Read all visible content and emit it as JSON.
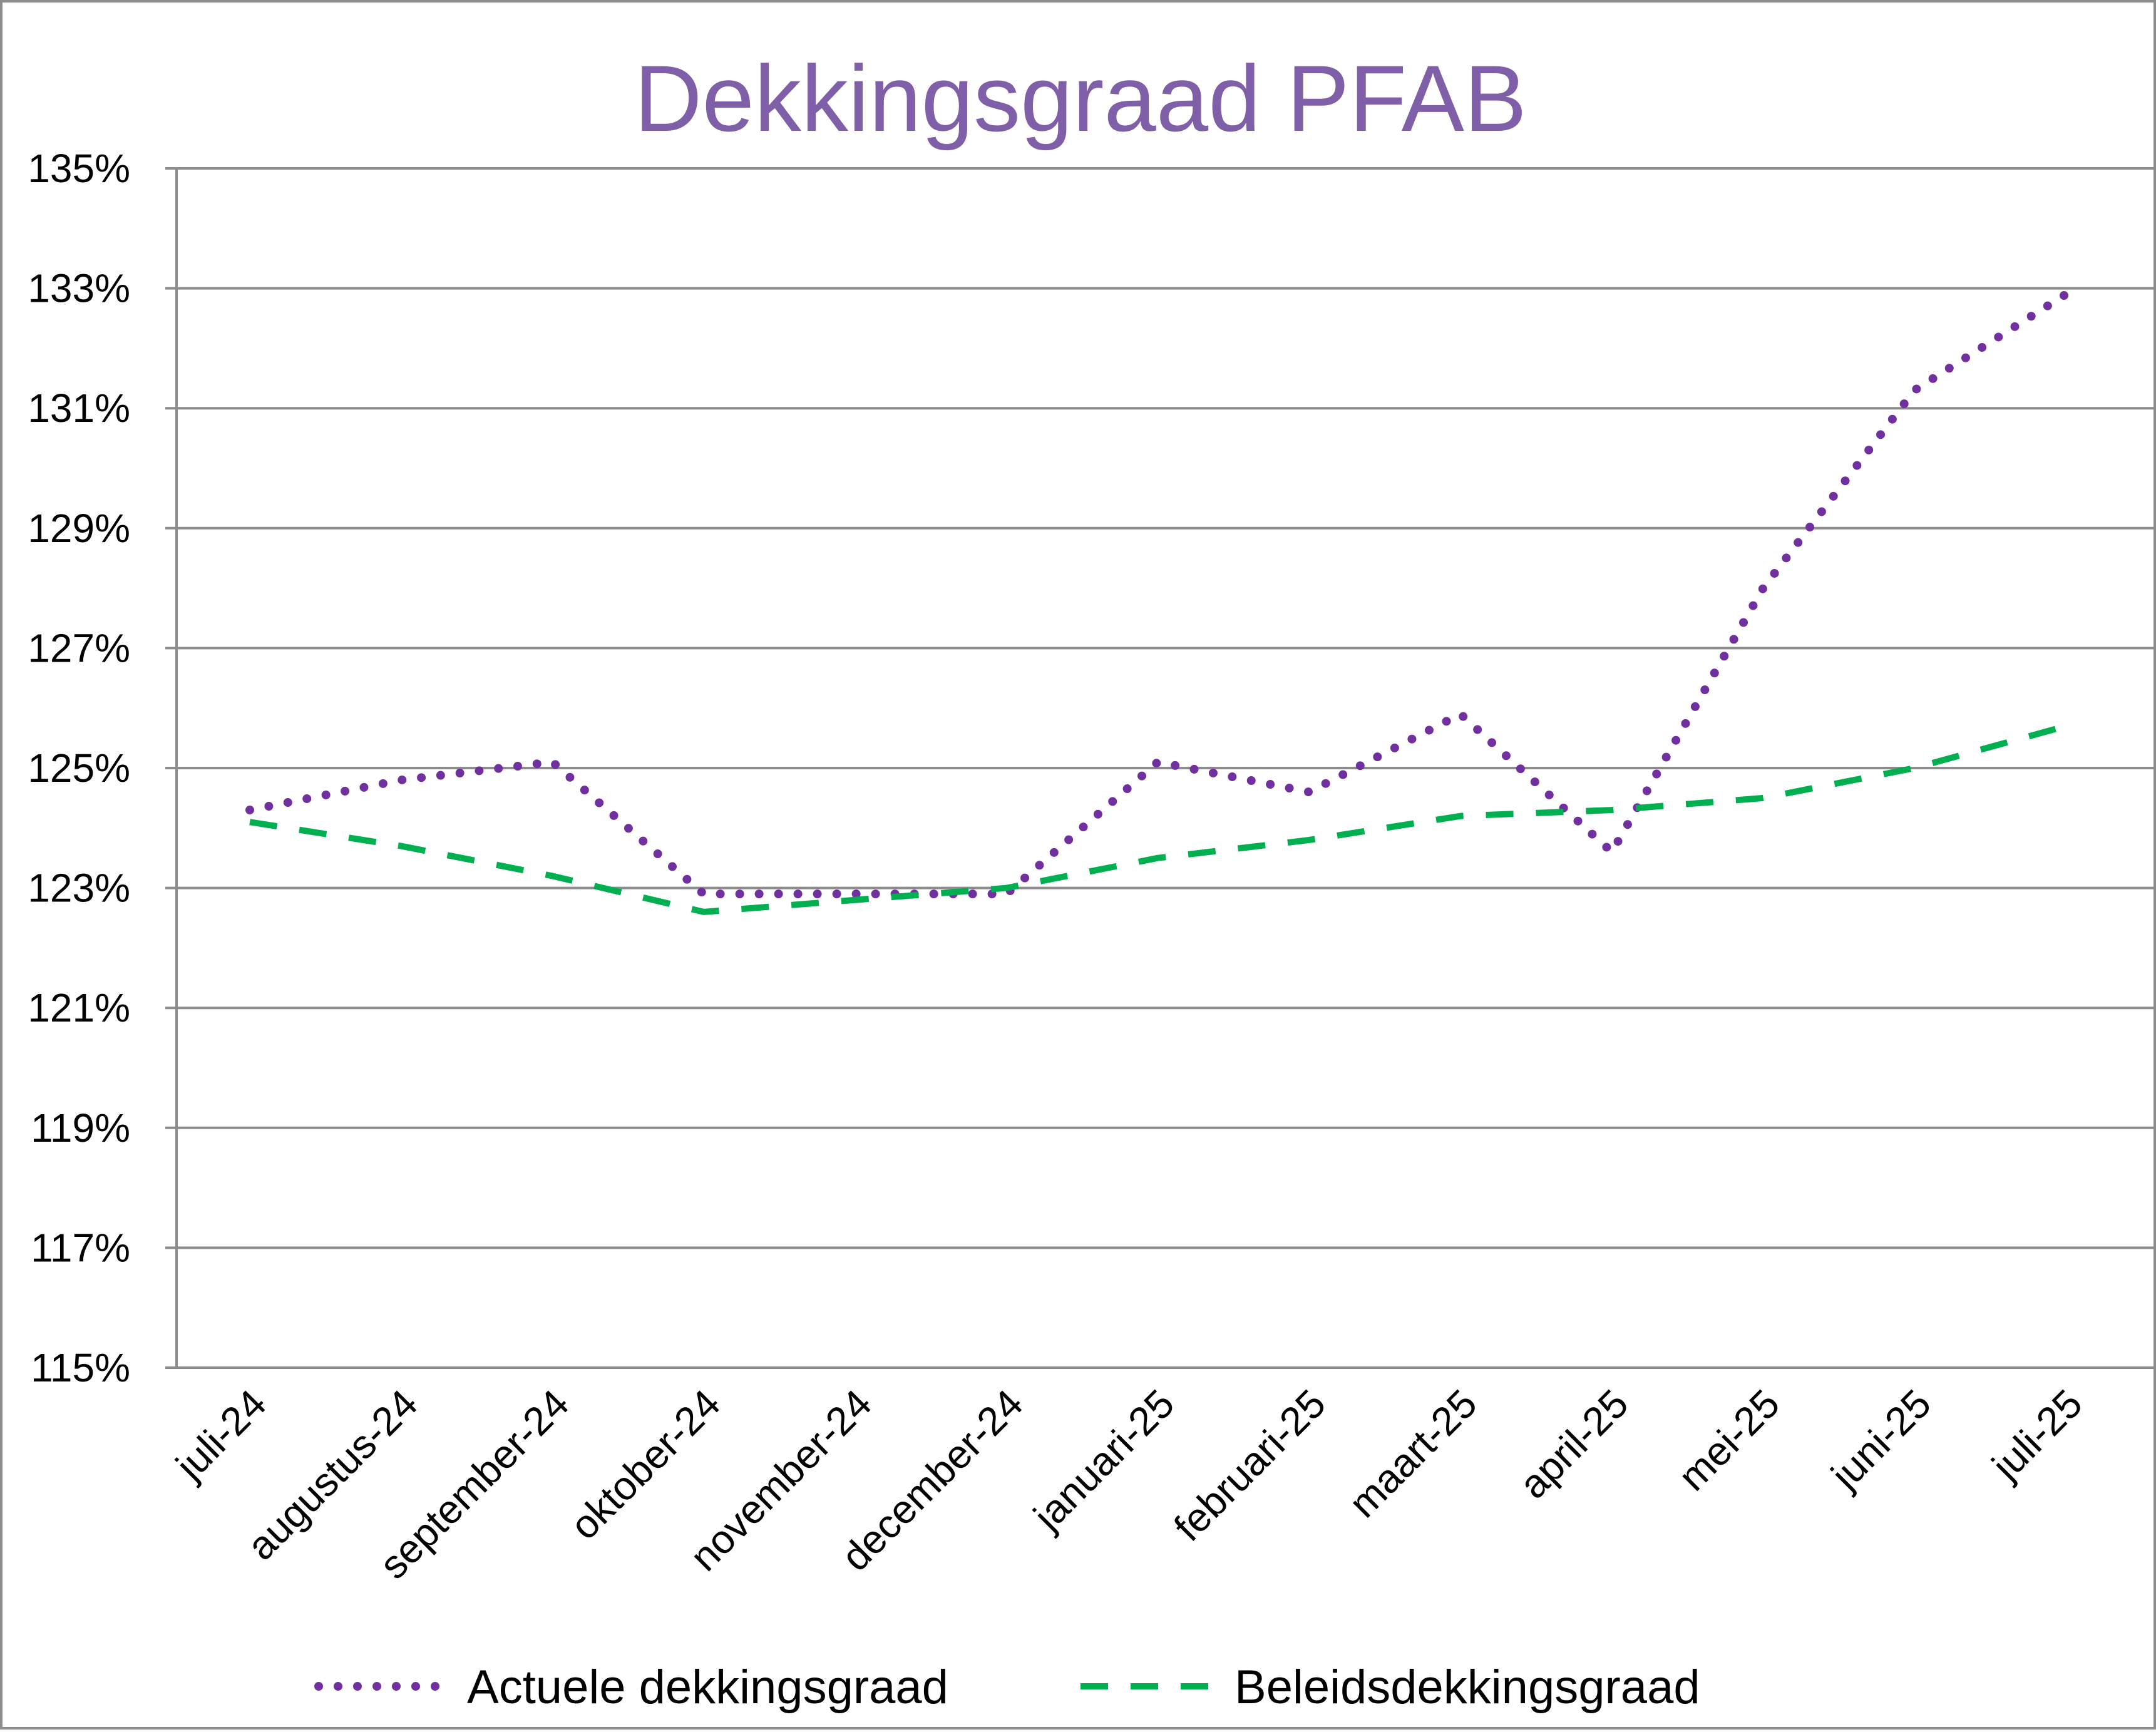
{
  "chart_data": {
    "type": "line",
    "title": "Dekkingsgraad  PFAB",
    "title_color": "#7e5fa8",
    "categories": [
      "juli-24",
      "augustus-24",
      "september-24",
      "oktober-24",
      "november-24",
      "december-24",
      "januari-25",
      "februari-25",
      "maart-25",
      "april-25",
      "mei-25",
      "juni-25",
      "juli-25"
    ],
    "ylim": [
      115,
      135
    ],
    "yticks": [
      115,
      117,
      119,
      121,
      123,
      125,
      127,
      129,
      131,
      133,
      135
    ],
    "ytick_labels": [
      "115%",
      "117%",
      "119%",
      "121%",
      "123%",
      "125%",
      "127%",
      "129%",
      "131%",
      "133%",
      "135%"
    ],
    "grid": true,
    "legend_position": "bottom",
    "series": [
      {
        "name": "Actuele dekkingsgraad",
        "values": [
          124.3,
          124.8,
          125.1,
          122.9,
          122.9,
          122.9,
          125.1,
          124.6,
          125.9,
          123.6,
          128.0,
          131.3,
          132.9
        ],
        "color": "#7030a0",
        "style": "dotted"
      },
      {
        "name": "Beleidsdekkingsgraad",
        "values": [
          124.1,
          123.7,
          123.2,
          122.6,
          122.8,
          123.0,
          123.5,
          123.8,
          124.2,
          124.3,
          124.5,
          125.0,
          125.7
        ],
        "color": "#00b050",
        "style": "dashed"
      }
    ]
  }
}
